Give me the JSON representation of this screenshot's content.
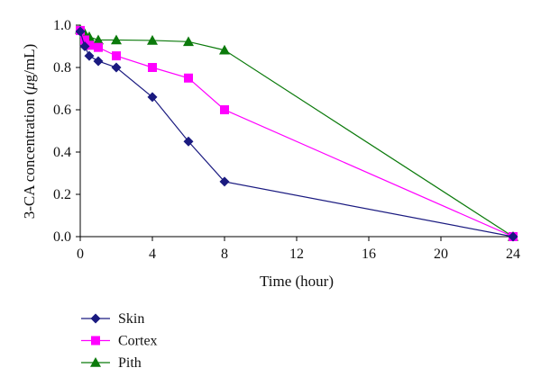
{
  "chart_data": {
    "type": "line",
    "title": "",
    "xlabel": "Time (hour)",
    "ylabel_parts": [
      "3-CA concentration (",
      "μ",
      "g/mL)"
    ],
    "xlim": [
      0,
      24
    ],
    "ylim": [
      0,
      1.0
    ],
    "x_ticks": [
      "0",
      "4",
      "8",
      "12",
      "16",
      "20",
      "24"
    ],
    "y_ticks": [
      "0.0",
      "0.2",
      "0.4",
      "0.6",
      "0.8",
      "1.0"
    ],
    "grid": false,
    "legend_position": "bottom-left",
    "series": [
      {
        "name": "Skin",
        "color": "#1a1a80",
        "marker": "diamond",
        "x": [
          0,
          0.25,
          0.5,
          1,
          2,
          4,
          6,
          8,
          24
        ],
        "y": [
          0.97,
          0.9,
          0.855,
          0.83,
          0.8,
          0.66,
          0.45,
          0.26,
          0.0
        ]
      },
      {
        "name": "Cortex",
        "color": "#ff00ff",
        "marker": "square",
        "x": [
          0,
          0.25,
          0.5,
          1,
          2,
          4,
          6,
          8,
          24
        ],
        "y": [
          0.975,
          0.93,
          0.905,
          0.895,
          0.855,
          0.8,
          0.75,
          0.6,
          0.0
        ]
      },
      {
        "name": "Pith",
        "color": "#0b7a0b",
        "marker": "triangle",
        "x": [
          0,
          0.25,
          0.5,
          1,
          2,
          4,
          6,
          8,
          24
        ],
        "y": [
          0.98,
          0.96,
          0.945,
          0.93,
          0.93,
          0.928,
          0.922,
          0.882,
          0.0
        ]
      }
    ]
  }
}
